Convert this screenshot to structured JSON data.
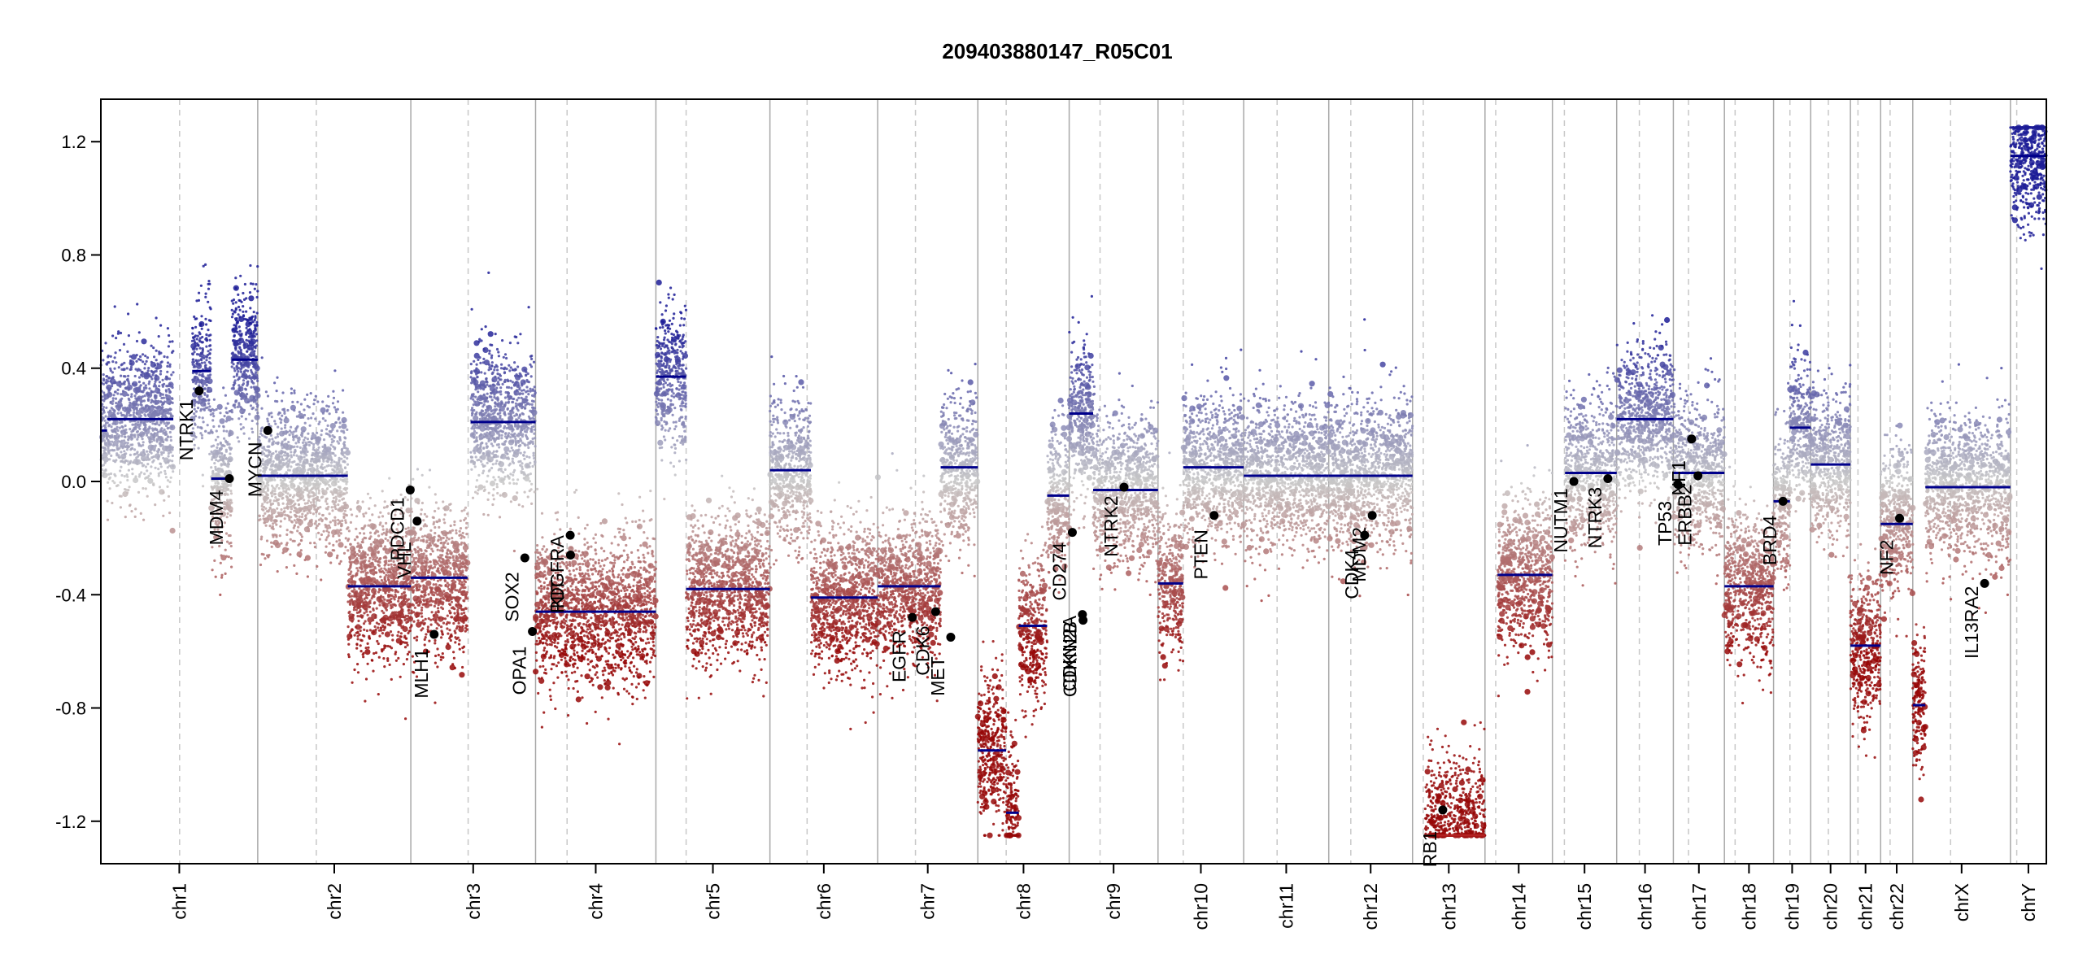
{
  "chart_data": {
    "type": "scatter",
    "title": "209403880147_R05C01",
    "xlabel": "",
    "ylabel": "",
    "ylim": [
      -1.35,
      1.35
    ],
    "y_ticks": [
      1.2,
      0.8,
      0.4,
      0.0,
      -0.4,
      -0.8,
      -1.2
    ],
    "y_tick_labels": [
      "1.2",
      "0.8",
      "0.4",
      "0.0",
      "-0.4",
      "-0.8",
      "-1.2"
    ],
    "grid": "vertical chromosome separators",
    "chromosomes": [
      {
        "name": "chr1",
        "len": 249,
        "cent": 125
      },
      {
        "name": "chr2",
        "len": 243,
        "cent": 93
      },
      {
        "name": "chr3",
        "len": 198,
        "cent": 91
      },
      {
        "name": "chr4",
        "len": 191,
        "cent": 50
      },
      {
        "name": "chr5",
        "len": 181,
        "cent": 48
      },
      {
        "name": "chr6",
        "len": 171,
        "cent": 59
      },
      {
        "name": "chr7",
        "len": 159,
        "cent": 60
      },
      {
        "name": "chr8",
        "len": 145,
        "cent": 45
      },
      {
        "name": "chr9",
        "len": 141,
        "cent": 49
      },
      {
        "name": "chr10",
        "len": 136,
        "cent": 40
      },
      {
        "name": "chr11",
        "len": 135,
        "cent": 53
      },
      {
        "name": "chr12",
        "len": 133,
        "cent": 35
      },
      {
        "name": "chr13",
        "len": 115,
        "cent": 17
      },
      {
        "name": "chr14",
        "len": 107,
        "cent": 17
      },
      {
        "name": "chr15",
        "len": 102,
        "cent": 19
      },
      {
        "name": "chr16",
        "len": 90,
        "cent": 36
      },
      {
        "name": "chr17",
        "len": 81,
        "cent": 24
      },
      {
        "name": "chr18",
        "len": 78,
        "cent": 17
      },
      {
        "name": "chr19",
        "len": 59,
        "cent": 26
      },
      {
        "name": "chr20",
        "len": 63,
        "cent": 28
      },
      {
        "name": "chr21",
        "len": 48,
        "cent": 12
      },
      {
        "name": "chr22",
        "len": 51,
        "cent": 15
      },
      {
        "name": "chrX",
        "len": 155,
        "cent": 60
      },
      {
        "name": "chrY",
        "len": 57,
        "cent": 10
      }
    ],
    "segments": [
      {
        "chr": "chr1",
        "start": 0,
        "end": 10,
        "value": 0.18
      },
      {
        "chr": "chr1",
        "start": 10,
        "end": 115,
        "value": 0.22
      },
      {
        "chr": "chr1",
        "start": 145,
        "end": 175,
        "value": 0.39
      },
      {
        "chr": "chr1",
        "start": 175,
        "end": 208,
        "value": 0.01
      },
      {
        "chr": "chr1",
        "start": 208,
        "end": 249,
        "value": 0.43
      },
      {
        "chr": "chr2",
        "start": 0,
        "end": 143,
        "value": 0.02
      },
      {
        "chr": "chr2",
        "start": 143,
        "end": 243,
        "value": -0.37
      },
      {
        "chr": "chr3",
        "start": 0,
        "end": 90,
        "value": -0.34
      },
      {
        "chr": "chr3",
        "start": 95,
        "end": 198,
        "value": 0.21
      },
      {
        "chr": "chr4",
        "start": 0,
        "end": 191,
        "value": -0.46
      },
      {
        "chr": "chr5",
        "start": 0,
        "end": 48,
        "value": 0.37
      },
      {
        "chr": "chr5",
        "start": 48,
        "end": 181,
        "value": -0.38
      },
      {
        "chr": "chr6",
        "start": 0,
        "end": 65,
        "value": 0.04
      },
      {
        "chr": "chr6",
        "start": 65,
        "end": 171,
        "value": -0.41
      },
      {
        "chr": "chr7",
        "start": 0,
        "end": 100,
        "value": -0.37
      },
      {
        "chr": "chr7",
        "start": 100,
        "end": 159,
        "value": 0.05
      },
      {
        "chr": "chr8",
        "start": 0,
        "end": 45,
        "value": -0.95
      },
      {
        "chr": "chr8",
        "start": 45,
        "end": 65,
        "value": -1.17
      },
      {
        "chr": "chr8",
        "start": 65,
        "end": 110,
        "value": -0.51
      },
      {
        "chr": "chr8",
        "start": 110,
        "end": 145,
        "value": -0.05
      },
      {
        "chr": "chr9",
        "start": 0,
        "end": 38,
        "value": 0.24
      },
      {
        "chr": "chr9",
        "start": 38,
        "end": 141,
        "value": -0.03
      },
      {
        "chr": "chr10",
        "start": 0,
        "end": 40,
        "value": -0.36
      },
      {
        "chr": "chr10",
        "start": 40,
        "end": 136,
        "value": 0.05
      },
      {
        "chr": "chr11",
        "start": 0,
        "end": 135,
        "value": 0.02
      },
      {
        "chr": "chr12",
        "start": 0,
        "end": 133,
        "value": 0.02
      },
      {
        "chr": "chr13",
        "start": 20,
        "end": 115,
        "value": -1.25
      },
      {
        "chr": "chr14",
        "start": 20,
        "end": 107,
        "value": -0.33
      },
      {
        "chr": "chr15",
        "start": 20,
        "end": 102,
        "value": 0.03
      },
      {
        "chr": "chr16",
        "start": 0,
        "end": 90,
        "value": 0.22
      },
      {
        "chr": "chr17",
        "start": 0,
        "end": 81,
        "value": 0.03
      },
      {
        "chr": "chr18",
        "start": 0,
        "end": 78,
        "value": -0.37
      },
      {
        "chr": "chr19",
        "start": 0,
        "end": 26,
        "value": -0.07
      },
      {
        "chr": "chr19",
        "start": 26,
        "end": 59,
        "value": 0.19
      },
      {
        "chr": "chr20",
        "start": 0,
        "end": 63,
        "value": 0.06
      },
      {
        "chr": "chr21",
        "start": 0,
        "end": 48,
        "value": -0.58
      },
      {
        "chr": "chr22",
        "start": 0,
        "end": 51,
        "value": -0.15
      },
      {
        "chr": "chrX",
        "start": 0,
        "end": 20,
        "value": -0.79
      },
      {
        "chr": "chrX",
        "start": 20,
        "end": 155,
        "value": -0.02
      },
      {
        "chr": "chrY",
        "start": 0,
        "end": 57,
        "value": 1.15
      }
    ],
    "genes": [
      {
        "name": "NTRK1",
        "chr": "chr1",
        "pos": 156,
        "value": 0.32
      },
      {
        "name": "MDM4",
        "chr": "chr1",
        "pos": 204,
        "value": 0.01
      },
      {
        "name": "MYCN",
        "chr": "chr2",
        "pos": 16,
        "value": 0.18
      },
      {
        "name": "PDCD1",
        "chr": "chr2",
        "pos": 242,
        "value": -0.03
      },
      {
        "name": "VHL",
        "chr": "chr3",
        "pos": 10,
        "value": -0.14
      },
      {
        "name": "MLH1",
        "chr": "chr3",
        "pos": 37,
        "value": -0.54
      },
      {
        "name": "SOX2",
        "chr": "chr3",
        "pos": 181,
        "value": -0.27
      },
      {
        "name": "OPA1",
        "chr": "chr3",
        "pos": 193,
        "value": -0.53
      },
      {
        "name": "PDGFRA",
        "chr": "chr4",
        "pos": 55,
        "value": -0.19
      },
      {
        "name": "KIT",
        "chr": "chr4",
        "pos": 55.5,
        "value": -0.26
      },
      {
        "name": "EGFR",
        "chr": "chr7",
        "pos": 55,
        "value": -0.48
      },
      {
        "name": "CDK6",
        "chr": "chr7",
        "pos": 92,
        "value": -0.46
      },
      {
        "name": "MET",
        "chr": "chr7",
        "pos": 116,
        "value": -0.55
      },
      {
        "name": "CD274",
        "chr": "chr9",
        "pos": 5,
        "value": -0.18
      },
      {
        "name": "CDKN2A",
        "chr": "chr9",
        "pos": 21,
        "value": -0.47
      },
      {
        "name": "CDKN2B",
        "chr": "chr9",
        "pos": 22,
        "value": -0.49
      },
      {
        "name": "NTRK2",
        "chr": "chr9",
        "pos": 87,
        "value": -0.02
      },
      {
        "name": "PTEN",
        "chr": "chr10",
        "pos": 89,
        "value": -0.12
      },
      {
        "name": "CDK4",
        "chr": "chr12",
        "pos": 57,
        "value": -0.19
      },
      {
        "name": "MDM2",
        "chr": "chr12",
        "pos": 69,
        "value": -0.12
      },
      {
        "name": "RB1",
        "chr": "chr13",
        "pos": 48,
        "value": -1.16
      },
      {
        "name": "NUTM1",
        "chr": "chr15",
        "pos": 34,
        "value": 0.0
      },
      {
        "name": "NTRK3",
        "chr": "chr15",
        "pos": 88,
        "value": 0.01
      },
      {
        "name": "TP53",
        "chr": "chr17",
        "pos": 7,
        "value": -0.01
      },
      {
        "name": "NF1",
        "chr": "chr17",
        "pos": 29,
        "value": 0.15
      },
      {
        "name": "ERBB2",
        "chr": "chr17",
        "pos": 39,
        "value": 0.02
      },
      {
        "name": "BRD4",
        "chr": "chr19",
        "pos": 15,
        "value": -0.07
      },
      {
        "name": "NF2",
        "chr": "chr22",
        "pos": 30,
        "value": -0.13
      },
      {
        "name": "IL13RA2",
        "chr": "chrX",
        "pos": 114,
        "value": -0.36
      }
    ]
  }
}
